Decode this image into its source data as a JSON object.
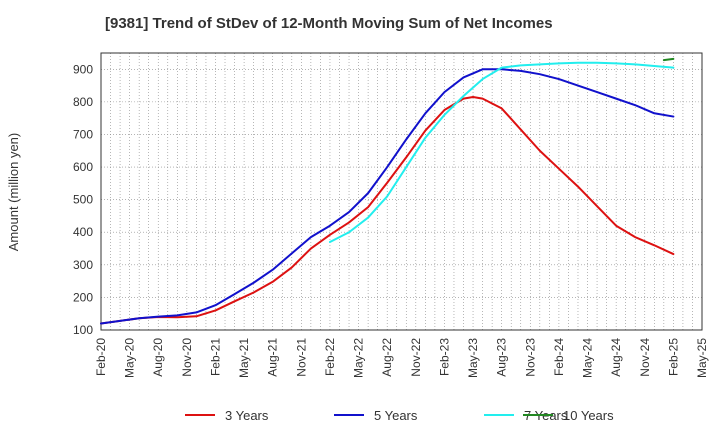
{
  "chart_data": {
    "type": "line",
    "title": "[9381]  Trend of StDev of 12-Month Moving Sum of Net Incomes",
    "ylabel": "Amount (million yen)",
    "xlabel": "",
    "ylim": [
      100,
      950
    ],
    "yticks": [
      100,
      200,
      300,
      400,
      500,
      600,
      700,
      800,
      900
    ],
    "xlim": [
      "2020-02",
      "2025-05"
    ],
    "xticks": [
      "Feb-20",
      "May-20",
      "Aug-20",
      "Nov-20",
      "Feb-21",
      "May-21",
      "Aug-21",
      "Nov-21",
      "Feb-22",
      "May-22",
      "Aug-22",
      "Nov-22",
      "Feb-23",
      "May-23",
      "Aug-23",
      "Nov-23",
      "Feb-24",
      "May-24",
      "Aug-24",
      "Nov-24",
      "Feb-25",
      "May-25"
    ],
    "grid": true,
    "legend_position": "bottom",
    "series": [
      {
        "name": "3 Years",
        "color": "#dd1111",
        "x": [
          "2020-02",
          "2020-04",
          "2020-06",
          "2020-08",
          "2020-10",
          "2020-12",
          "2021-02",
          "2021-04",
          "2021-06",
          "2021-08",
          "2021-10",
          "2021-12",
          "2022-02",
          "2022-04",
          "2022-06",
          "2022-08",
          "2022-10",
          "2022-12",
          "2023-02",
          "2023-04",
          "2023-05",
          "2023-06",
          "2023-08",
          "2023-10",
          "2023-12",
          "2024-02",
          "2024-04",
          "2024-06",
          "2024-08",
          "2024-10",
          "2024-12",
          "2025-02"
        ],
        "values": [
          120,
          128,
          136,
          140,
          139,
          142,
          160,
          188,
          215,
          248,
          292,
          350,
          392,
          430,
          477,
          552,
          630,
          712,
          775,
          810,
          815,
          810,
          780,
          715,
          650,
          595,
          540,
          480,
          420,
          385,
          360,
          333
        ]
      },
      {
        "name": "5 Years",
        "color": "#1111cc",
        "x": [
          "2020-02",
          "2020-04",
          "2020-06",
          "2020-08",
          "2020-10",
          "2020-12",
          "2021-02",
          "2021-04",
          "2021-06",
          "2021-08",
          "2021-10",
          "2021-12",
          "2022-02",
          "2022-04",
          "2022-06",
          "2022-08",
          "2022-10",
          "2022-12",
          "2023-02",
          "2023-04",
          "2023-06",
          "2023-08",
          "2023-10",
          "2023-12",
          "2024-02",
          "2024-04",
          "2024-06",
          "2024-08",
          "2024-10",
          "2024-12",
          "2025-02"
        ],
        "values": [
          120,
          128,
          136,
          141,
          145,
          154,
          176,
          210,
          245,
          285,
          335,
          385,
          420,
          462,
          520,
          600,
          685,
          765,
          830,
          875,
          900,
          900,
          895,
          885,
          870,
          850,
          830,
          810,
          790,
          765,
          755
        ]
      },
      {
        "name": "7 Years",
        "color": "#22eeee",
        "x": [
          "2022-02",
          "2022-04",
          "2022-06",
          "2022-08",
          "2022-10",
          "2022-12",
          "2023-02",
          "2023-04",
          "2023-06",
          "2023-08",
          "2023-10",
          "2023-12",
          "2024-02",
          "2024-04",
          "2024-06",
          "2024-08",
          "2024-10",
          "2024-12",
          "2025-02"
        ],
        "values": [
          370,
          400,
          445,
          510,
          600,
          690,
          760,
          818,
          870,
          905,
          912,
          915,
          918,
          920,
          920,
          918,
          915,
          910,
          905
        ]
      },
      {
        "name": "10 Years",
        "color": "#228822",
        "x": [
          "2025-01",
          "2025-02"
        ],
        "values": [
          928,
          932
        ]
      }
    ]
  }
}
